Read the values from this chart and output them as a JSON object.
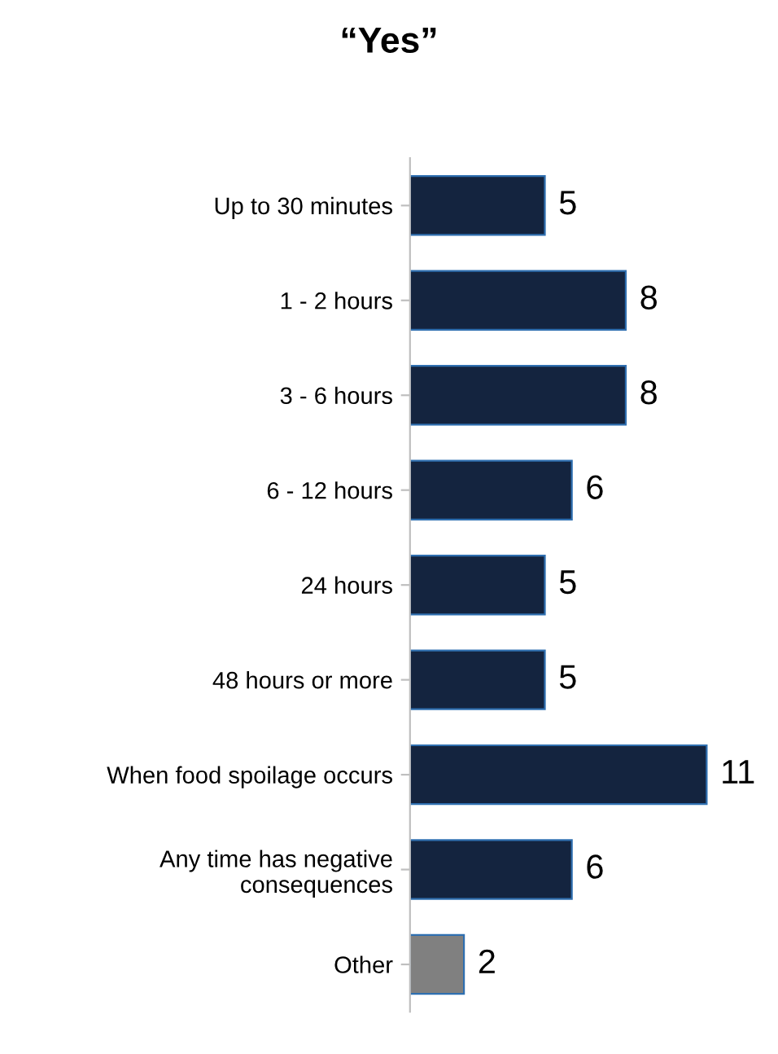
{
  "chart_data": {
    "type": "bar",
    "orientation": "horizontal",
    "title": "“Yes”",
    "categories": [
      "Up to 30 minutes",
      "1 - 2 hours",
      "3 - 6 hours",
      "6 - 12 hours",
      "24 hours",
      "48 hours or more",
      "When food spoilage occurs",
      "Any time has negative\nconsequences",
      "Other"
    ],
    "values": [
      5,
      8,
      8,
      6,
      5,
      5,
      11,
      6,
      2
    ],
    "colors": [
      "#14243f",
      "#14243f",
      "#14243f",
      "#14243f",
      "#14243f",
      "#14243f",
      "#14243f",
      "#14243f",
      "#808080"
    ],
    "data_labels": true,
    "grid": false,
    "legend": false
  }
}
